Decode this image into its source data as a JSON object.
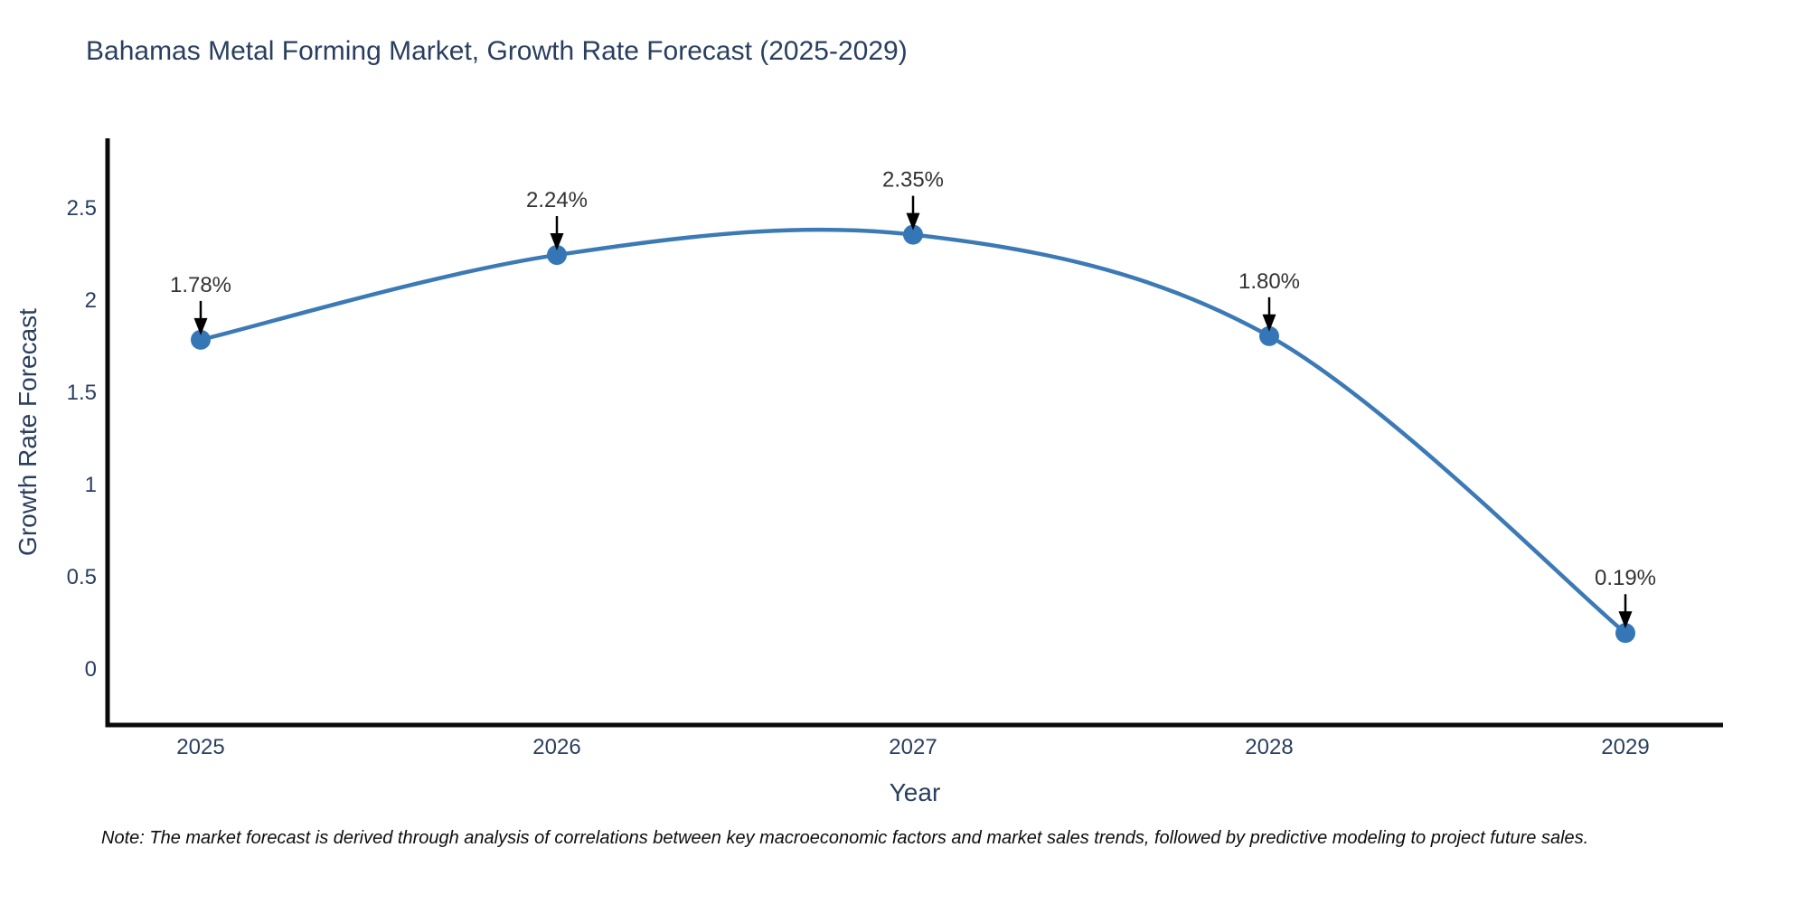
{
  "note": "Note: The market forecast is derived through analysis of correlations between key macroeconomic factors and market sales trends, followed by predictive modeling to project future sales.",
  "chart_data": {
    "type": "line",
    "title": "Bahamas Metal Forming Market, Growth Rate Forecast (2025-2029)",
    "xlabel": "Year",
    "ylabel": "Growth Rate Forecast",
    "categories": [
      "2025",
      "2026",
      "2027",
      "2028",
      "2029"
    ],
    "values": [
      1.78,
      2.24,
      2.35,
      1.8,
      0.19
    ],
    "point_labels": [
      "1.78%",
      "2.24%",
      "2.35%",
      "1.80%",
      "0.19%"
    ],
    "yticks": [
      0,
      0.5,
      1,
      1.5,
      2,
      2.5
    ],
    "ytick_labels": [
      "0",
      "0.5",
      "1",
      "1.5",
      "2",
      "2.5"
    ],
    "ylim": [
      -0.31,
      2.87
    ],
    "xlim": [
      "2024.74",
      "2029.27"
    ],
    "grid": false,
    "legend": false,
    "line_shape": "spline",
    "annotations": "black down-arrows from percentage labels to each marker",
    "colors": {
      "line": "#3c7ab5",
      "marker": "#3577b6",
      "axis": "#0b0b0b",
      "text": "#2a3f5f",
      "annotation_text": "#333333",
      "arrow": "#000000",
      "background": "#ffffff"
    }
  }
}
